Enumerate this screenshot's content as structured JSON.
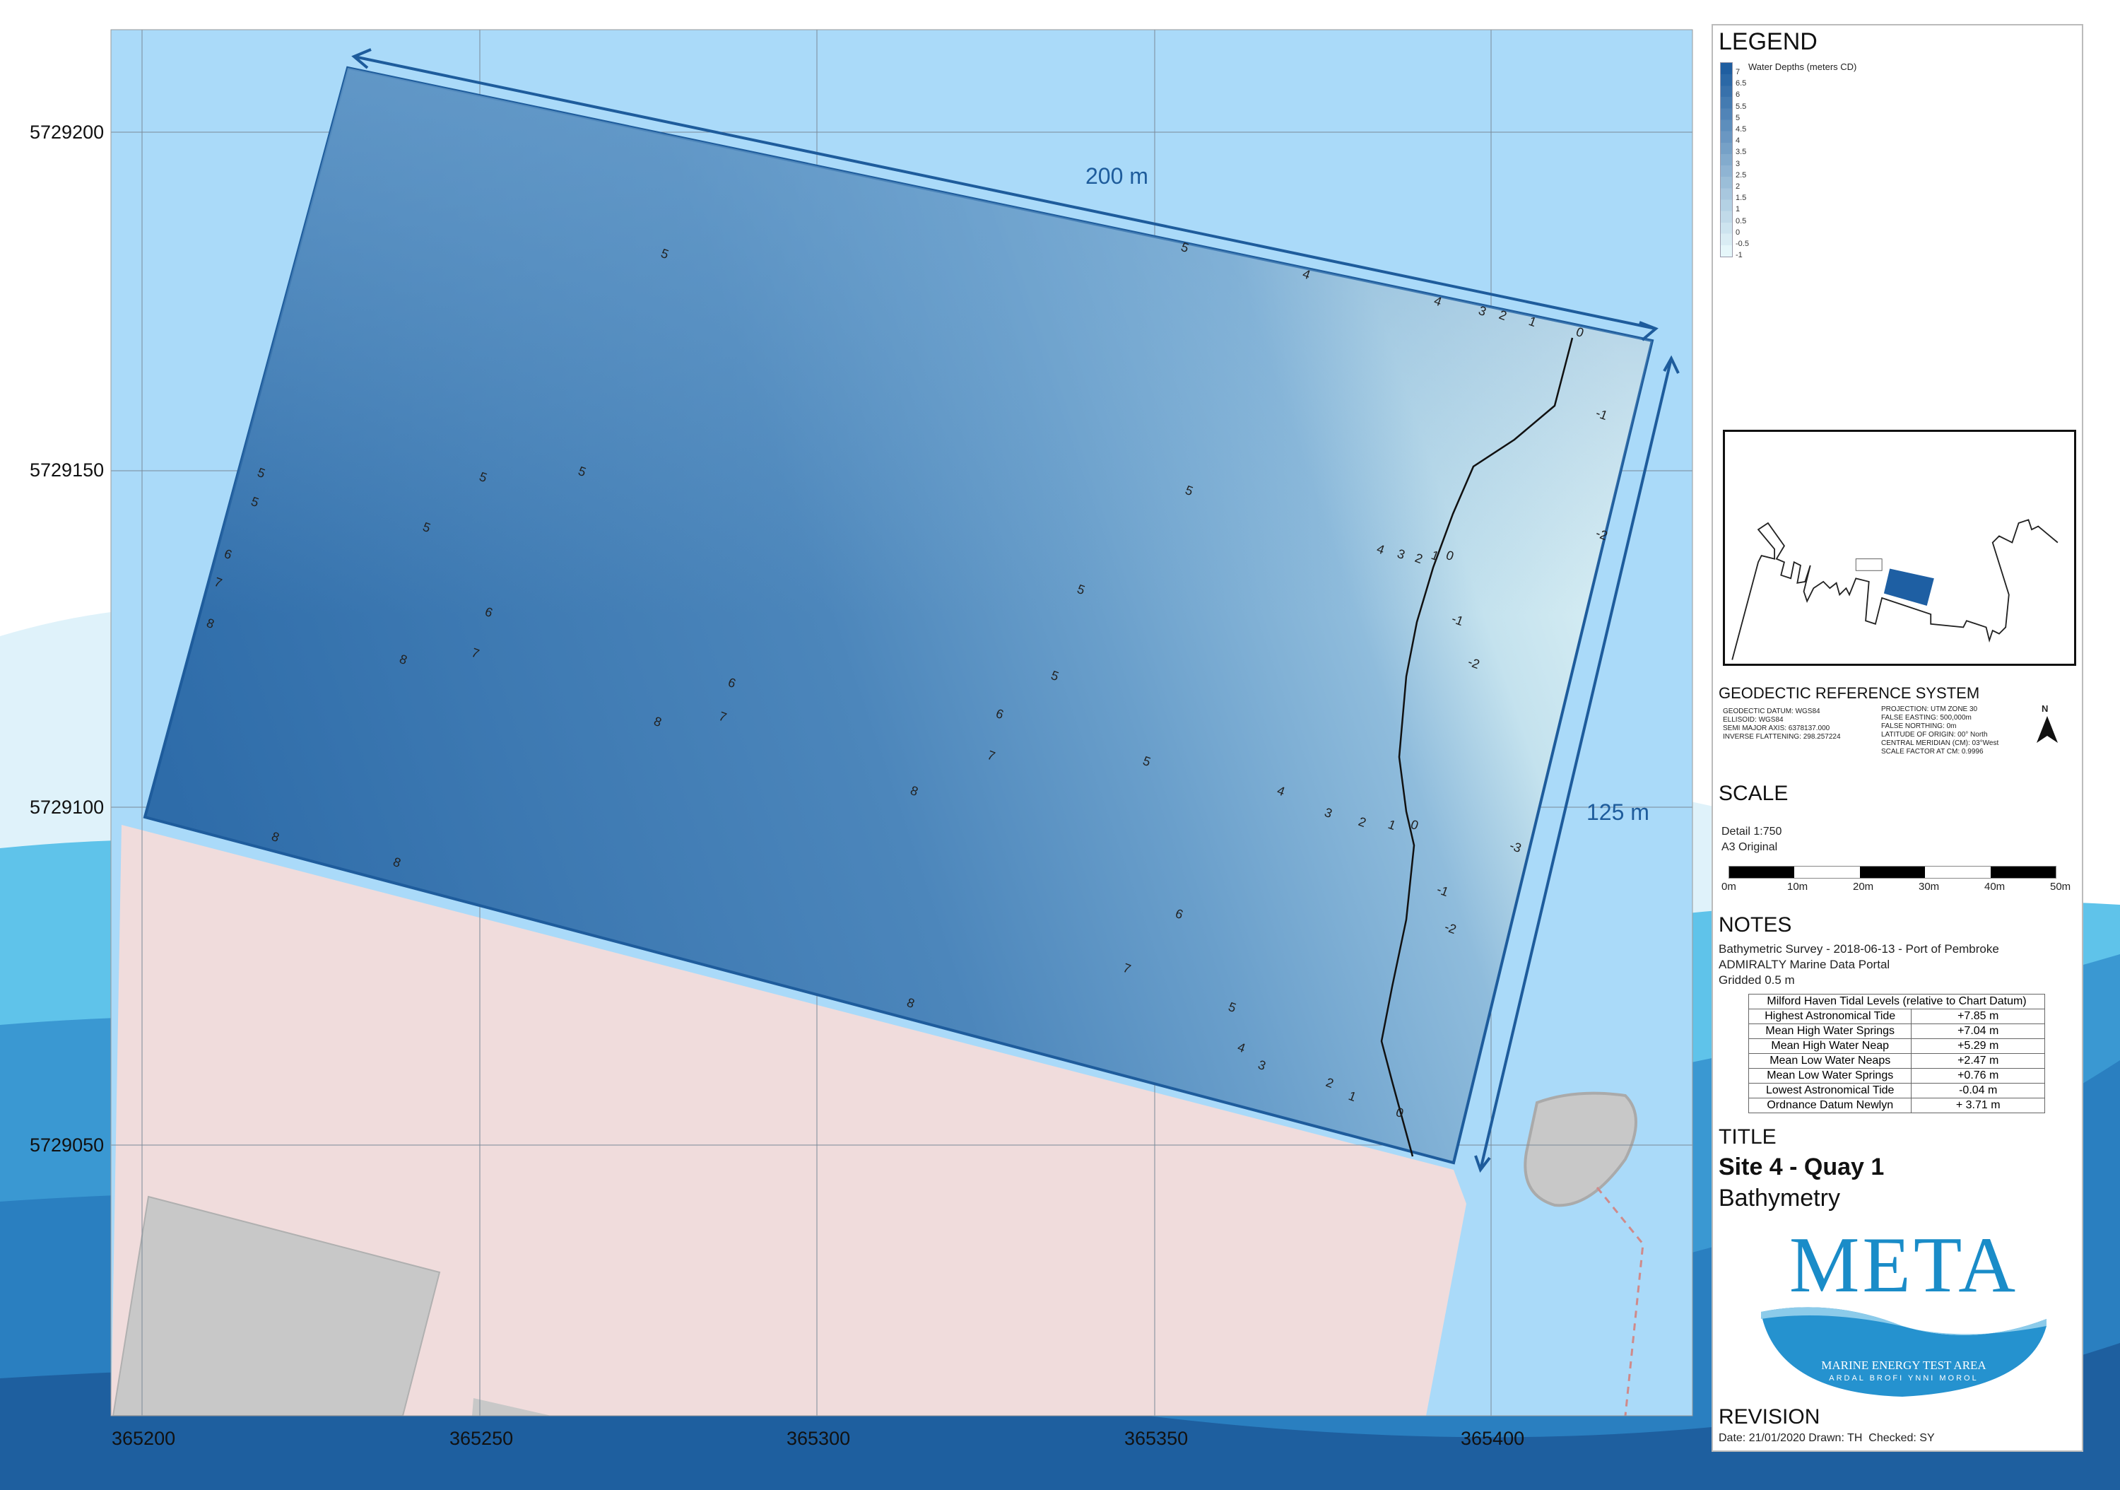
{
  "map": {
    "y_ticks": [
      "5729200",
      "5729150",
      "5729100",
      "5729050"
    ],
    "x_ticks": [
      "365200",
      "365250",
      "365300",
      "365350",
      "365400"
    ],
    "dimension_long": "200 m",
    "dimension_short": "125 m",
    "contour_labels": [
      "5",
      "5",
      "4",
      "4",
      "3",
      "2",
      "1",
      "0",
      "-1",
      "5",
      "5",
      "5",
      "5",
      "5",
      "6",
      "7",
      "8",
      "6",
      "7",
      "8",
      "6",
      "7",
      "8",
      "5",
      "5",
      "6",
      "7",
      "8",
      "5",
      "5",
      "4",
      "3",
      "2",
      "1",
      "0",
      "-1",
      "-2",
      "-2",
      "4",
      "3",
      "2",
      "1",
      "0",
      "-1",
      "-2",
      "-3",
      "6",
      "7",
      "5",
      "4",
      "3",
      "2",
      "1",
      "0",
      "8",
      "8",
      "8"
    ],
    "colors": {
      "deep": "#2d6aa8",
      "shallow": "#e3f5f7",
      "water": "#aadaf9",
      "land": "#f0dcdc",
      "building": "#c8c8c8",
      "outline": "#1e5c9c"
    }
  },
  "legend": {
    "title": "LEGEND",
    "subtitle": "Water Depths (meters CD)",
    "classes": [
      "7",
      "6.5",
      "6",
      "5.5",
      "5",
      "4.5",
      "4",
      "3.5",
      "3",
      "2.5",
      "2",
      "1.5",
      "1",
      "0.5",
      "0",
      "-0.5",
      "-1"
    ]
  },
  "geodetic": {
    "title": "GEODECTIC REFERENCE SYSTEM",
    "left": [
      "GEODECTIC DATUM: WGS84",
      "ELLISOID: WGS84",
      "SEMI MAJOR AXIS: 6378137.000",
      "INVERSE FLATTENING: 298.257224"
    ],
    "right": [
      "PROJECTION: UTM ZONE 30",
      "FALSE EASTING: 500,000m",
      "FALSE NORTHING: 0m",
      "LATITUDE OF ORIGIN: 00° North",
      "CENTRAL MERIDIAN (CM): 03°West",
      "SCALE FACTOR AT CM: 0.9996"
    ],
    "north": "N"
  },
  "scale": {
    "title": "SCALE",
    "detail": "Detail 1:750",
    "original": "A3 Original",
    "ticks": [
      "0m",
      "10m",
      "20m",
      "30m",
      "40m",
      "50m"
    ]
  },
  "notes": {
    "title": "NOTES",
    "lines": [
      "Bathymetric Survey - 2018-06-13 - Port of Pembroke",
      "ADMIRALTY Marine Data Portal",
      "Gridded 0.5 m"
    ],
    "table_title": "Milford Haven Tidal Levels (relative to Chart Datum)",
    "rows": [
      [
        "Highest Astronomical Tide",
        "+7.85 m"
      ],
      [
        "Mean High Water Springs",
        "+7.04 m"
      ],
      [
        "Mean High Water Neap",
        "+5.29 m"
      ],
      [
        "Mean Low Water Neaps",
        "+2.47 m"
      ],
      [
        "Mean Low Water Springs",
        "+0.76 m"
      ],
      [
        "Lowest Astronomical Tide",
        "-0.04 m"
      ],
      [
        "Ordnance Datum Newlyn",
        "+ 3.71 m"
      ]
    ]
  },
  "title": {
    "heading": "TITLE",
    "site": "Site 4 - Quay 1",
    "subject": "Bathymetry"
  },
  "logo": {
    "name": "META",
    "tagline": "MARINE ENERGY TEST AREA",
    "welsh": "ARDAL BROFI YNNI MOROL"
  },
  "revision": {
    "heading": "REVISION",
    "line": "Date: 21/01/2020 Drawn: TH  Checked: SY"
  }
}
